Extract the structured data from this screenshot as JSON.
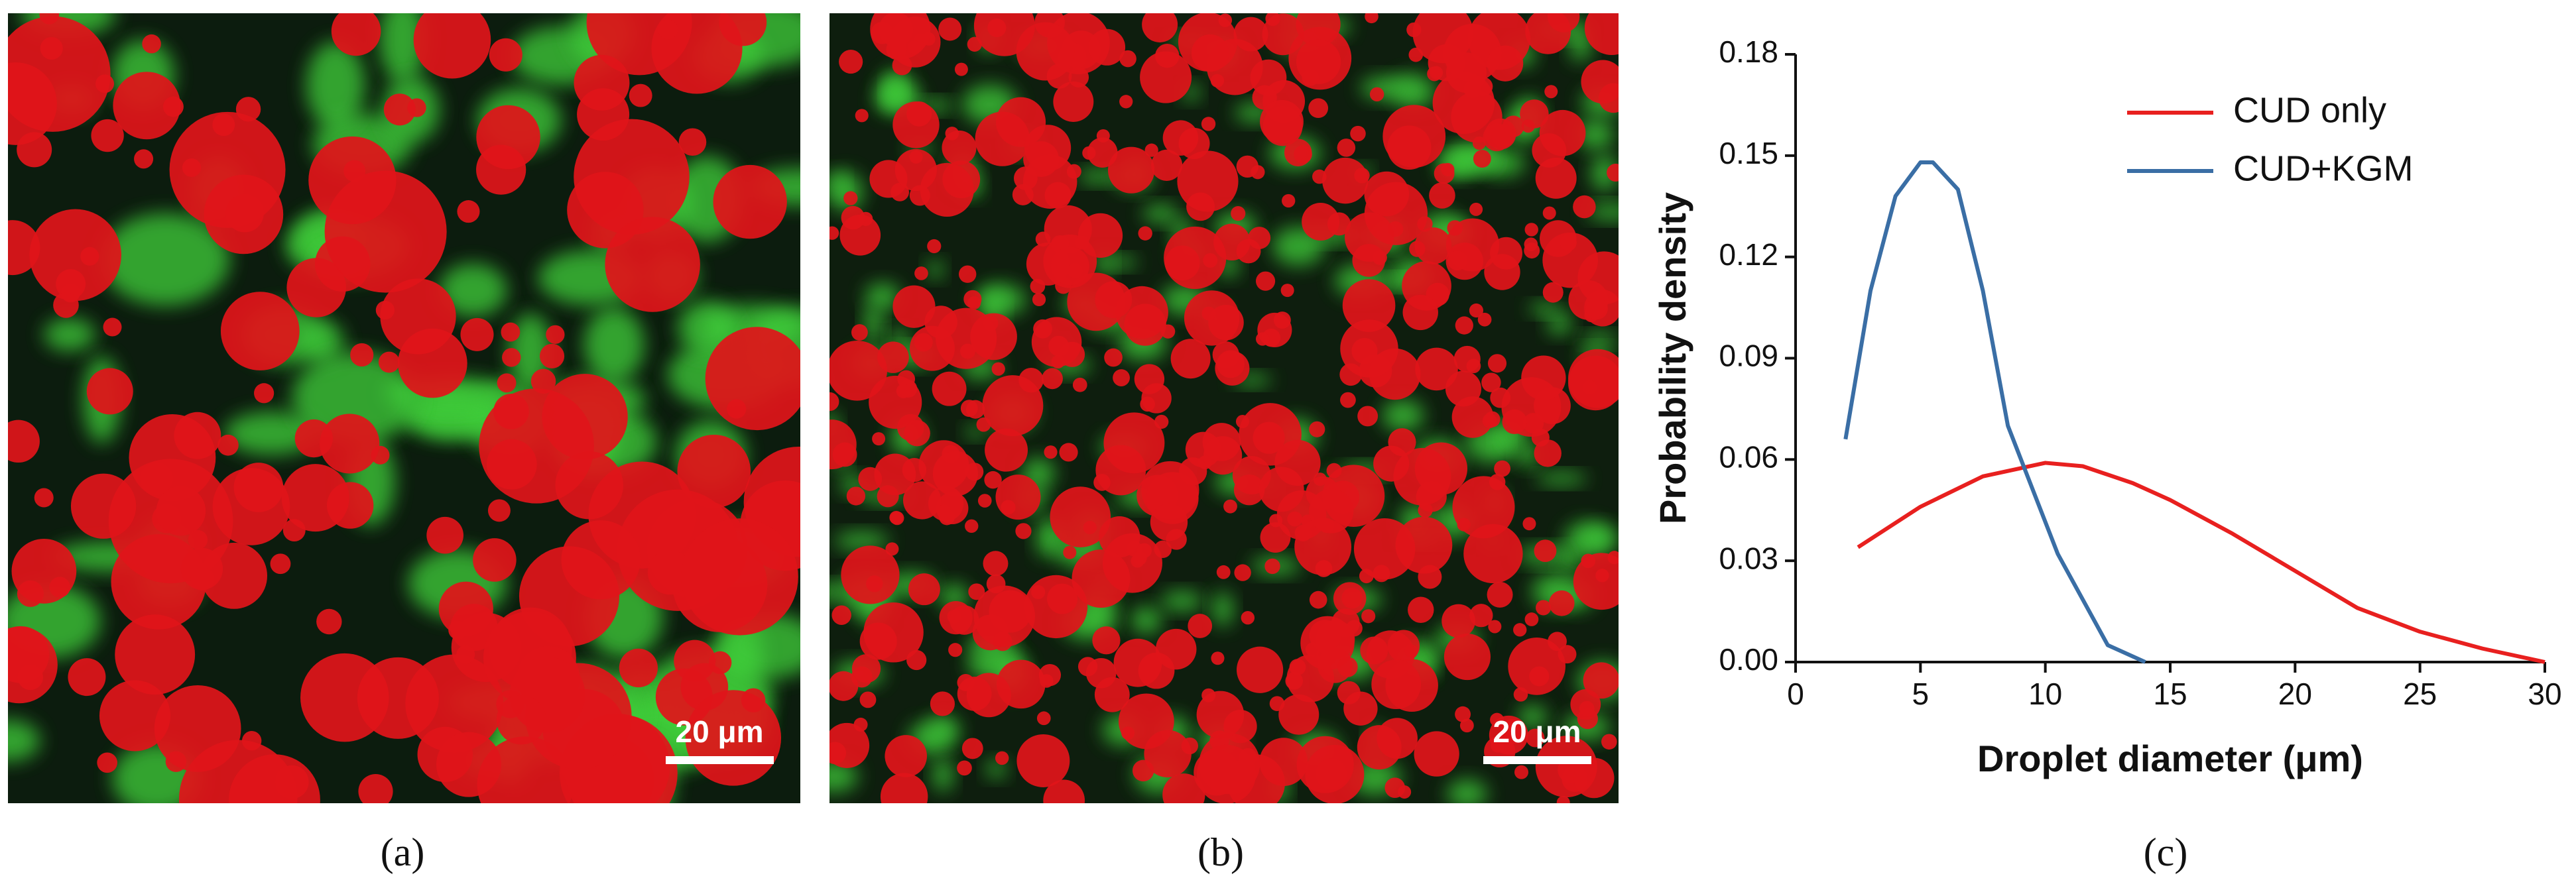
{
  "panels": [
    {
      "label": "(a)",
      "scale_bar": "20 μm"
    },
    {
      "label": "(b)",
      "scale_bar": "20 μm"
    },
    {
      "label": "(c)"
    }
  ],
  "chart_data": {
    "type": "line",
    "x_label": "Droplet diameter (μm)",
    "y_label": "Probability density",
    "xlim": [
      0,
      30
    ],
    "xticks": [
      0,
      5,
      10,
      15,
      20,
      25,
      30
    ],
    "ylim": [
      0,
      0.18
    ],
    "yticks": [
      {
        "value": 0,
        "label": "0.00"
      },
      {
        "value": 0.03,
        "label": "0.03"
      },
      {
        "value": 0.06,
        "label": "0.06"
      },
      {
        "value": 0.09,
        "label": "0.09"
      },
      {
        "value": 0.12,
        "label": "0.12"
      },
      {
        "value": 0.15,
        "label": "0.15"
      },
      {
        "value": 0.18,
        "label": "0.18"
      }
    ],
    "legend": "top-right",
    "series": [
      {
        "name": "CUD only",
        "color": "#e8201f",
        "x": [
          2.5,
          5,
          7.5,
          10,
          11.5,
          13.5,
          15,
          17.5,
          20,
          22.5,
          25,
          27.5,
          30
        ],
        "values": [
          0.034,
          0.046,
          0.055,
          0.059,
          0.058,
          0.053,
          0.048,
          0.038,
          0.027,
          0.016,
          0.009,
          0.004,
          0.0
        ]
      },
      {
        "name": "CUD+KGM",
        "color": "#3a6ea5",
        "x": [
          2,
          3,
          4,
          5,
          5.5,
          6.5,
          7.5,
          8.5,
          10.5,
          12.5,
          14
        ],
        "values": [
          0.066,
          0.11,
          0.138,
          0.148,
          0.148,
          0.14,
          0.11,
          0.07,
          0.032,
          0.005,
          0.0
        ]
      }
    ]
  }
}
